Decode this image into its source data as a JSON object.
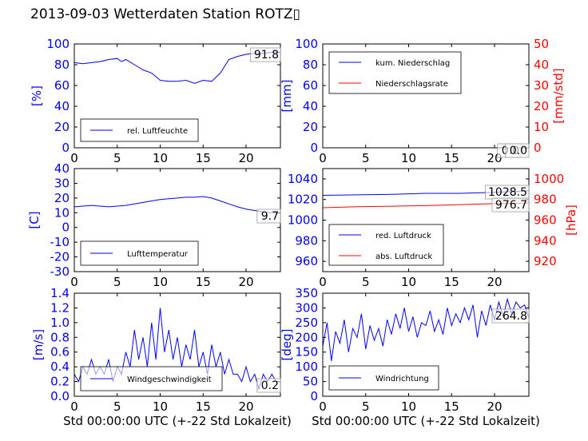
{
  "title": "2013-09-03 Wetterdaten Station ROTZ▯",
  "xlabel": "Std 00:00:00 UTC (+-22 Std Lokalzeit)",
  "colors": {
    "left_axis": "#0000ff",
    "right_axis": "#ff0000",
    "series_blue": "#0000ff",
    "series_red": "#ff0000"
  },
  "chart_data": [
    {
      "type": "line",
      "xlim": [
        0,
        24
      ],
      "xticks": [
        0,
        5,
        10,
        15,
        20
      ],
      "ylabel": "[%]",
      "ylim": [
        0,
        100
      ],
      "yticks": [
        0,
        20,
        40,
        60,
        80,
        100
      ],
      "x": [
        0,
        1,
        2,
        3,
        4,
        5,
        5.5,
        6,
        7,
        8,
        9,
        10,
        11,
        12,
        13,
        14,
        15,
        16,
        17,
        18,
        19,
        20,
        21,
        22,
        23,
        24
      ],
      "series": [
        {
          "name": "rel. Luftfeuchte",
          "color": "#0000ff",
          "values": [
            82,
            81,
            82,
            83,
            85,
            86,
            83,
            85,
            80,
            75,
            72,
            65,
            64,
            64,
            65,
            62,
            65,
            64,
            72,
            85,
            88,
            90,
            91,
            91,
            92,
            92
          ]
        }
      ],
      "annotations": [
        "91.8"
      ],
      "legend": "bottom-left"
    },
    {
      "type": "line",
      "xlim": [
        0,
        24
      ],
      "xticks": [
        0,
        5,
        10,
        15,
        20
      ],
      "ylabel": "[mm]",
      "ylim": [
        0,
        100
      ],
      "yticks": [
        0,
        20,
        40,
        60,
        80,
        100
      ],
      "ylabel_right": "[mm/std]",
      "ylim_right": [
        0,
        50
      ],
      "yticks_right": [
        0,
        10,
        20,
        30,
        40,
        50
      ],
      "x": [
        0,
        24
      ],
      "series": [
        {
          "name": "kum. Niederschlag",
          "color": "#0000ff",
          "values": [
            0,
            0
          ]
        },
        {
          "name": "Niederschlagsrate",
          "color": "#ff0000",
          "axis": "right",
          "values": [
            0,
            0
          ]
        }
      ],
      "annotations": [
        "0.0",
        "0.0"
      ],
      "legend": "top-left"
    },
    {
      "type": "line",
      "xlim": [
        0,
        24
      ],
      "xticks": [
        0,
        5,
        10,
        15,
        20
      ],
      "ylabel": "[C]",
      "ylim": [
        -30,
        40
      ],
      "yticks": [
        -30,
        -20,
        -10,
        0,
        10,
        20,
        30,
        40
      ],
      "x": [
        0,
        1,
        2,
        3,
        4,
        5,
        6,
        7,
        8,
        9,
        10,
        11,
        12,
        13,
        14,
        15,
        16,
        17,
        18,
        19,
        20,
        21,
        22,
        23,
        24
      ],
      "series": [
        {
          "name": "Lufttemperatur",
          "color": "#0000ff",
          "values": [
            14,
            14.5,
            15,
            14.5,
            14,
            14.5,
            15,
            16,
            17,
            18,
            19,
            19.5,
            20,
            20.5,
            20.5,
            21,
            20,
            18,
            16,
            14,
            12.5,
            11.5,
            10.5,
            10,
            9.7
          ]
        }
      ],
      "annotations": [
        "9.7"
      ],
      "legend": "bottom-left"
    },
    {
      "type": "line",
      "xlim": [
        0,
        24
      ],
      "xticks": [
        0,
        5,
        10,
        15,
        20
      ],
      "ylabel_right": "[hPa]",
      "ylim": [
        950,
        1050
      ],
      "yticks": [
        960,
        980,
        1000,
        1020,
        1040
      ],
      "ylim_right": [
        910,
        1010
      ],
      "yticks_right": [
        920,
        940,
        960,
        980,
        1000
      ],
      "x": [
        0,
        4,
        8,
        12,
        16,
        20,
        24
      ],
      "series": [
        {
          "name": "red. Luftdruck",
          "color": "#0000ff",
          "values": [
            1024,
            1024.5,
            1025,
            1026,
            1026,
            1027,
            1028.5
          ]
        },
        {
          "name": "abs. Luftdruck",
          "color": "#ff0000",
          "axis": "right",
          "values": [
            972,
            973,
            973.5,
            974,
            975,
            976,
            976.7
          ]
        }
      ],
      "annotations": [
        "1028.5",
        "976.7"
      ],
      "legend": "bottom-left"
    },
    {
      "type": "line",
      "xlim": [
        0,
        24
      ],
      "xticks": [
        0,
        5,
        10,
        15,
        20
      ],
      "ylabel": "[m/s]",
      "ylim": [
        0,
        1.4
      ],
      "yticks": [
        0.0,
        0.2,
        0.4,
        0.6,
        0.8,
        1.0,
        1.2,
        1.4
      ],
      "x": [
        0,
        0.5,
        1,
        1.5,
        2,
        2.5,
        3,
        3.5,
        4,
        4.5,
        5,
        5.5,
        6,
        6.5,
        7,
        7.5,
        8,
        8.5,
        9,
        9.5,
        10,
        10.5,
        11,
        11.5,
        12,
        12.5,
        13,
        13.5,
        14,
        14.5,
        15,
        15.5,
        16,
        16.5,
        17,
        17.5,
        18,
        18.5,
        19,
        19.5,
        20,
        20.5,
        21,
        21.5,
        22,
        22.5,
        23,
        23.5,
        24
      ],
      "series": [
        {
          "name": "Windgeschwindigkeit",
          "color": "#0000ff",
          "values": [
            0.3,
            0.2,
            0.4,
            0.3,
            0.5,
            0.3,
            0.4,
            0.3,
            0.5,
            0.2,
            0.4,
            0.3,
            0.6,
            0.4,
            0.9,
            0.5,
            0.8,
            0.4,
            1.0,
            0.5,
            1.2,
            0.6,
            0.9,
            0.5,
            0.8,
            0.4,
            0.7,
            0.5,
            0.9,
            0.4,
            0.6,
            0.3,
            0.7,
            0.4,
            0.6,
            0.3,
            0.5,
            0.3,
            0.3,
            0.2,
            0.4,
            0.2,
            0.3,
            0.1,
            0.3,
            0.2,
            0.3,
            0.2,
            0.2
          ]
        }
      ],
      "annotations": [
        "0.2"
      ],
      "legend": "bottom-left"
    },
    {
      "type": "line",
      "xlim": [
        0,
        24
      ],
      "xticks": [
        0,
        5,
        10,
        15,
        20
      ],
      "ylabel": "[deg]",
      "ylim": [
        0,
        350
      ],
      "yticks": [
        0,
        50,
        100,
        150,
        200,
        250,
        300,
        350
      ],
      "x": [
        0,
        0.5,
        1,
        1.5,
        2,
        2.5,
        3,
        3.5,
        4,
        4.5,
        5,
        5.5,
        6,
        6.5,
        7,
        7.5,
        8,
        8.5,
        9,
        9.5,
        10,
        10.5,
        11,
        11.5,
        12,
        12.5,
        13,
        13.5,
        14,
        14.5,
        15,
        15.5,
        16,
        16.5,
        17,
        17.5,
        18,
        18.5,
        19,
        19.5,
        20,
        20.5,
        21,
        21.5,
        22,
        22.5,
        23,
        23.5,
        24
      ],
      "series": [
        {
          "name": "Windrichtung",
          "color": "#0000ff",
          "values": [
            170,
            250,
            120,
            220,
            180,
            260,
            150,
            230,
            200,
            280,
            160,
            240,
            190,
            230,
            170,
            260,
            210,
            280,
            230,
            300,
            220,
            270,
            200,
            250,
            240,
            290,
            220,
            260,
            210,
            300,
            240,
            280,
            250,
            300,
            260,
            310,
            200,
            290,
            240,
            310,
            260,
            320,
            270,
            330,
            280,
            320,
            300,
            310,
            264.8
          ]
        }
      ],
      "annotations": [
        "264.8"
      ],
      "legend": "bottom-left"
    }
  ]
}
